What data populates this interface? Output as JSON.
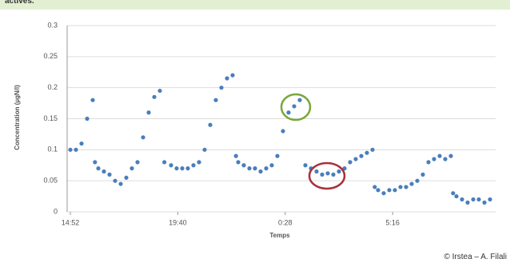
{
  "header": {
    "text": "actives."
  },
  "credit": "© Irstea – A. Filali",
  "chart_data": {
    "type": "scatter",
    "ylabel": "Concentration (µgN/l)",
    "xlabel": "Temps",
    "color": "#4a7ebb",
    "grid": true,
    "xlim": [
      0,
      19
    ],
    "xticks": [
      {
        "value": 0,
        "label": "14:52"
      },
      {
        "value": 4.8,
        "label": "19:40"
      },
      {
        "value": 9.6,
        "label": "0:28"
      },
      {
        "value": 14.4,
        "label": "5:16"
      }
    ],
    "ylim": [
      0,
      0.3
    ],
    "yticks": [
      0,
      0.05,
      0.1,
      0.15,
      0.2,
      0.25,
      0.3
    ],
    "x": [
      0,
      0.25,
      0.5,
      0.75,
      1.0,
      1.1,
      1.25,
      1.5,
      1.75,
      2.0,
      2.25,
      2.5,
      2.75,
      3.0,
      3.25,
      3.5,
      3.75,
      4.0,
      4.2,
      4.5,
      4.75,
      5.0,
      5.25,
      5.5,
      5.75,
      6.0,
      6.25,
      6.5,
      6.75,
      7.0,
      7.25,
      7.4,
      7.5,
      7.75,
      8.0,
      8.25,
      8.5,
      8.75,
      9.0,
      9.25,
      9.5,
      9.75,
      10.0,
      10.25,
      10.5,
      10.75,
      11.0,
      11.25,
      11.5,
      11.75,
      12.0,
      12.25,
      12.5,
      12.75,
      13.0,
      13.25,
      13.5,
      13.6,
      13.75,
      14.0,
      14.25,
      14.5,
      14.75,
      15.0,
      15.25,
      15.5,
      15.75,
      16.0,
      16.25,
      16.5,
      16.75,
      17.0,
      17.1,
      17.25,
      17.5,
      17.75,
      18.0,
      18.25,
      18.5,
      18.75
    ],
    "values": [
      0.1,
      0.1,
      0.11,
      0.15,
      0.18,
      0.08,
      0.07,
      0.065,
      0.06,
      0.05,
      0.045,
      0.055,
      0.07,
      0.08,
      0.12,
      0.16,
      0.185,
      0.195,
      0.08,
      0.075,
      0.07,
      0.07,
      0.07,
      0.075,
      0.08,
      0.1,
      0.14,
      0.18,
      0.2,
      0.215,
      0.22,
      0.09,
      0.08,
      0.075,
      0.07,
      0.07,
      0.065,
      0.07,
      0.075,
      0.09,
      0.13,
      0.16,
      0.17,
      0.18,
      0.075,
      0.07,
      0.065,
      0.06,
      0.062,
      0.06,
      0.065,
      0.07,
      0.08,
      0.085,
      0.09,
      0.095,
      0.1,
      0.04,
      0.035,
      0.03,
      0.035,
      0.035,
      0.04,
      0.04,
      0.045,
      0.05,
      0.06,
      0.08,
      0.085,
      0.09,
      0.085,
      0.09,
      0.03,
      0.025,
      0.02,
      0.015,
      0.02,
      0.02,
      0.015,
      0.02
    ]
  }
}
